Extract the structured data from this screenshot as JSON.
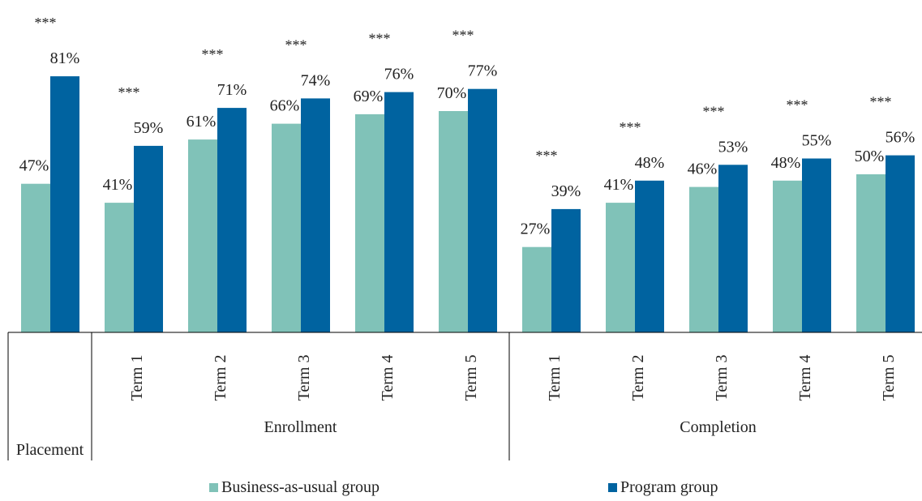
{
  "colors": {
    "business": "#80c2b8",
    "program": "#0063a0",
    "axis": "#000000"
  },
  "legend": {
    "business_label": "Business-as-usual group",
    "program_label": "Program group"
  },
  "chart_data": {
    "type": "bar",
    "ylim": [
      0,
      100
    ],
    "grid": false,
    "legend_position": "bottom",
    "categories": [
      "",
      "Term 1",
      "Term 2",
      "Term 3",
      "Term 4",
      "Term 5",
      "Term 1",
      "Term 2",
      "Term 3",
      "Term 4",
      "Term 5"
    ],
    "groups": [
      {
        "label": "Placement",
        "count": 1
      },
      {
        "label": "Enrollment",
        "count": 5
      },
      {
        "label": "Completion",
        "count": 5
      }
    ],
    "series": [
      {
        "name": "Business-as-usual group",
        "values": [
          47,
          41,
          61,
          66,
          69,
          70,
          27,
          41,
          46,
          48,
          50
        ]
      },
      {
        "name": "Program group",
        "values": [
          81,
          59,
          71,
          74,
          76,
          77,
          39,
          48,
          53,
          55,
          56
        ]
      }
    ],
    "value_labels": {
      "business": [
        "47%",
        "41%",
        "61%",
        "66%",
        "69%",
        "70%",
        "27%",
        "41%",
        "46%",
        "48%",
        "50%"
      ],
      "program": [
        "81%",
        "59%",
        "71%",
        "74%",
        "76%",
        "77%",
        "39%",
        "48%",
        "53%",
        "55%",
        "56%"
      ]
    },
    "significance": [
      "***",
      "***",
      "***",
      "***",
      "***",
      "***",
      "***",
      "***",
      "***",
      "***",
      "***"
    ]
  }
}
